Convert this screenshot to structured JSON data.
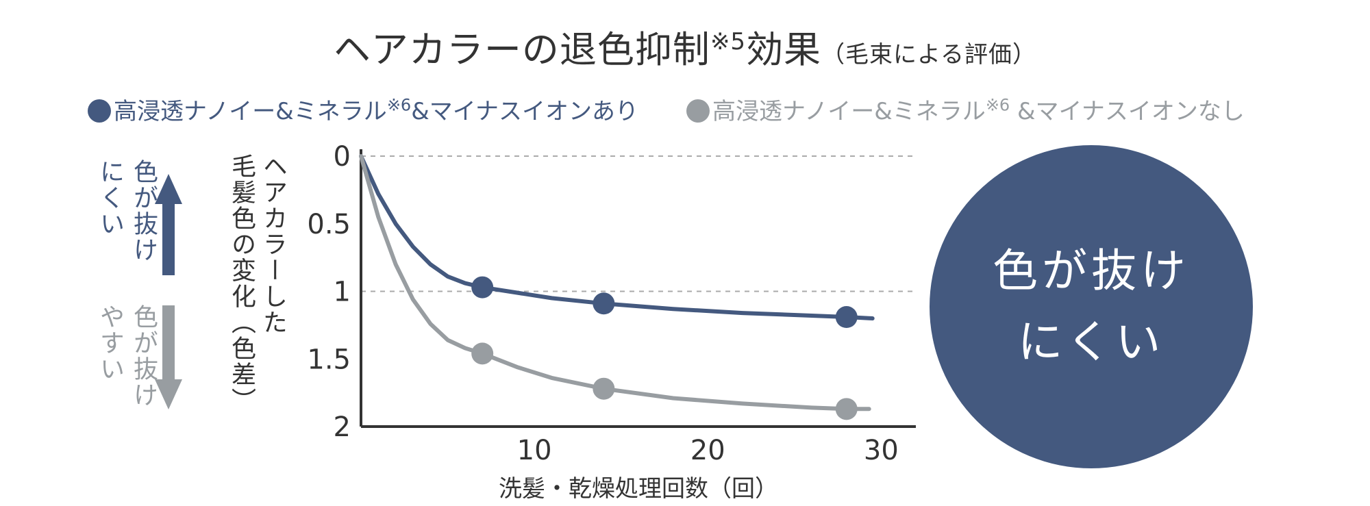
{
  "title": {
    "main": "ヘアカラーの退色抑制",
    "note": "※5",
    "effect": "効果",
    "sub": "（毛束による評価）"
  },
  "legend": {
    "with": {
      "text": "高浸透ナノイー&ミネラル",
      "note": "※6",
      "tail": "&マイナスイオンあり"
    },
    "without": {
      "text": "高浸透ナノイー&ミネラル",
      "note": "※6",
      "tail": " &マイナスイオンなし"
    }
  },
  "side": {
    "up": {
      "col1": "色が抜け",
      "col2": "にくい"
    },
    "down": {
      "col1": "色が抜け",
      "col2": "やすい"
    }
  },
  "ylabel": {
    "col1": "ヘアカラーした",
    "col2": "毛髪色の変化（色差）"
  },
  "xlabel": "洗髪・乾燥処理回数（回）",
  "circle": {
    "line1": "色が抜け",
    "line2": "にくい"
  },
  "colors": {
    "with": "#44597f",
    "without": "#989da1",
    "axis": "#333333",
    "grid": "#aaaaaa"
  },
  "chart_data": {
    "type": "line",
    "xlabel": "洗髪・乾燥処理回数（回）",
    "ylabel": "ヘアカラーした毛髪色の変化（色差）",
    "xlim": [
      0,
      32
    ],
    "ylim": [
      0,
      2
    ],
    "y_inverted": true,
    "xticks": [
      "10",
      "20",
      "30"
    ],
    "xtick_values": [
      10,
      20,
      30
    ],
    "yticks": [
      "0",
      "0.5",
      "1",
      "1.5",
      "2"
    ],
    "ytick_values": [
      0,
      0.5,
      1,
      1.5,
      2
    ],
    "dashed_gridlines_y": [
      0,
      1
    ],
    "series": [
      {
        "name": "高浸透ナノイー&ミネラル※6&マイナスイオンあり",
        "color": "#44597f",
        "x": [
          0,
          7,
          14,
          28
        ],
        "y": [
          0,
          0.97,
          1.09,
          1.19
        ],
        "curve_x": [
          0,
          1,
          2,
          3,
          4,
          5,
          6,
          7,
          9,
          11,
          14,
          18,
          22,
          26,
          28,
          29.5
        ],
        "curve_y": [
          0,
          0.28,
          0.5,
          0.67,
          0.8,
          0.89,
          0.94,
          0.97,
          1.01,
          1.05,
          1.09,
          1.13,
          1.16,
          1.18,
          1.19,
          1.2
        ]
      },
      {
        "name": "高浸透ナノイー&ミネラル※6 &マイナスイオンなし",
        "color": "#989da1",
        "x": [
          0,
          7,
          14,
          28
        ],
        "y": [
          0,
          1.46,
          1.72,
          1.87
        ],
        "curve_x": [
          0,
          1,
          2,
          3,
          4,
          5,
          6,
          7,
          9,
          11,
          14,
          18,
          22,
          26,
          28,
          29.3
        ],
        "curve_y": [
          0,
          0.45,
          0.8,
          1.06,
          1.24,
          1.36,
          1.42,
          1.46,
          1.56,
          1.64,
          1.72,
          1.79,
          1.83,
          1.86,
          1.87,
          1.87
        ]
      }
    ]
  }
}
